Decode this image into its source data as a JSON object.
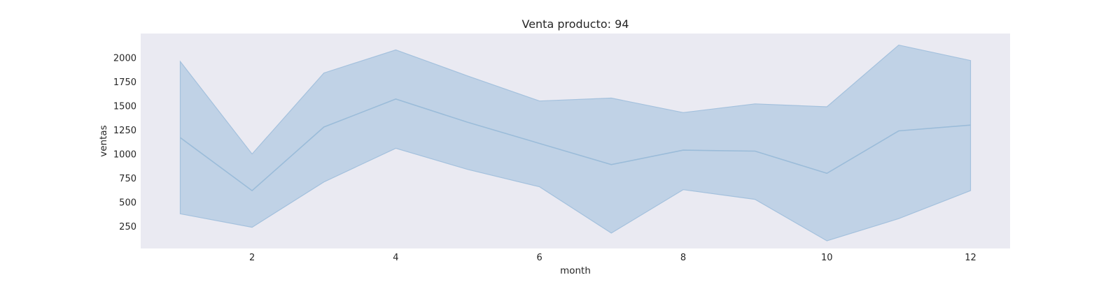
{
  "chart_data": {
    "type": "area",
    "title": "Venta producto: 94",
    "xlabel": "month",
    "ylabel": "ventas",
    "x": [
      1,
      2,
      3,
      4,
      5,
      6,
      7,
      8,
      9,
      10,
      11,
      12
    ],
    "series": [
      {
        "values": [
          1170,
          620,
          1280,
          1570,
          1330,
          1110,
          890,
          1040,
          1030,
          800,
          1240,
          1300
        ],
        "band_lower": [
          380,
          240,
          710,
          1060,
          840,
          660,
          180,
          630,
          530,
          100,
          330,
          620
        ],
        "band_upper": [
          1960,
          1000,
          1840,
          2080,
          1810,
          1550,
          1580,
          1430,
          1520,
          1490,
          2130,
          1970
        ]
      }
    ],
    "xticks": [
      2,
      4,
      6,
      8,
      10,
      12
    ],
    "yticks": [
      250,
      500,
      750,
      1000,
      1250,
      1500,
      1750,
      2000
    ],
    "xlim": [
      0.45,
      12.55
    ],
    "ylim": [
      20,
      2250
    ],
    "grid": false,
    "colors": {
      "background": "#eaeaf2",
      "band_fill": "#a4c1dd",
      "line": "#9bbcd9"
    }
  }
}
